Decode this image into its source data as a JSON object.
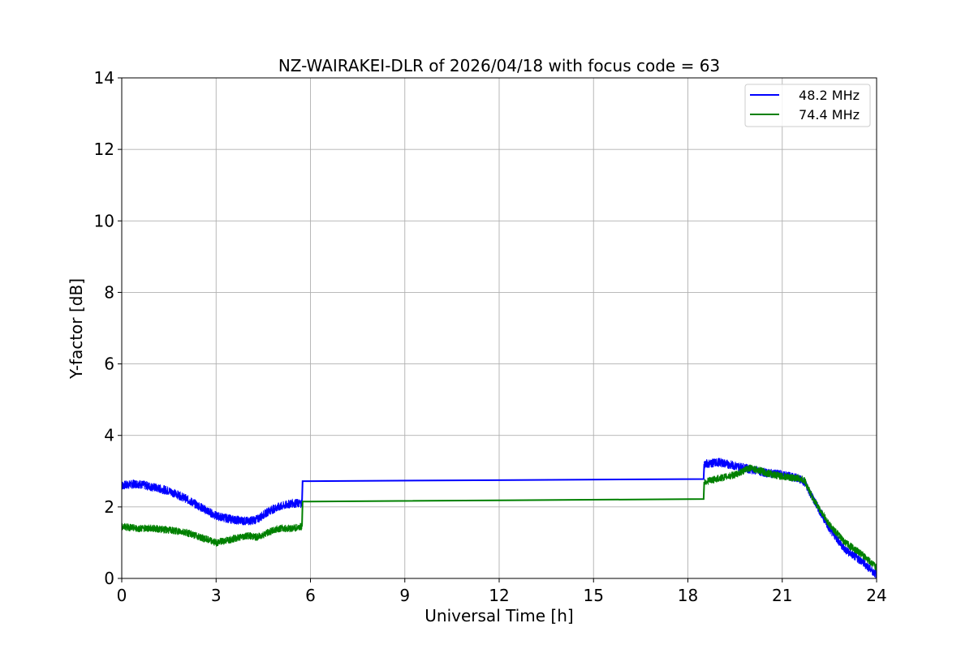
{
  "chart_data": {
    "type": "line",
    "title": "NZ-WAIRAKEI-DLR of 2026/04/18 with focus code = 63",
    "xlabel": "Universal Time [h]",
    "ylabel": "Y-factor [dB]",
    "xlim": [
      0,
      24
    ],
    "ylim": [
      0,
      14
    ],
    "xticks": [
      0,
      3,
      6,
      9,
      12,
      15,
      18,
      21,
      24
    ],
    "xtick_labels": [
      "0",
      "3",
      "6",
      "9",
      "12",
      "15",
      "18",
      "21",
      "24"
    ],
    "yticks": [
      0,
      2,
      4,
      6,
      8,
      10,
      12,
      14
    ],
    "ytick_labels": [
      "0",
      "2",
      "4",
      "6",
      "8",
      "10",
      "12",
      "14"
    ],
    "grid": true,
    "legend_position": "top-right",
    "series": [
      {
        "name": "48.2 MHz",
        "color": "#0000ff",
        "noise": 0.12,
        "x": [
          0,
          0.5,
          1.0,
          1.5,
          2.0,
          2.5,
          3.0,
          3.5,
          4.0,
          4.3,
          4.7,
          5.0,
          5.4,
          5.73,
          5.75,
          18.5,
          18.52,
          19.0,
          19.5,
          20.0,
          20.5,
          21.0,
          21.5,
          21.7,
          22.0,
          22.5,
          23.0,
          23.5,
          24.0
        ],
        "y": [
          2.6,
          2.65,
          2.55,
          2.45,
          2.25,
          2.0,
          1.75,
          1.65,
          1.6,
          1.65,
          1.9,
          2.0,
          2.1,
          2.1,
          2.72,
          2.78,
          3.2,
          3.25,
          3.15,
          3.05,
          2.95,
          2.9,
          2.8,
          2.7,
          2.2,
          1.4,
          0.8,
          0.5,
          0.1
        ]
      },
      {
        "name": "74.4 MHz",
        "color": "#008000",
        "noise": 0.1,
        "x": [
          0,
          0.5,
          1.0,
          1.5,
          2.0,
          2.5,
          3.0,
          3.5,
          4.0,
          4.3,
          4.7,
          5.0,
          5.4,
          5.73,
          5.75,
          18.5,
          18.52,
          19.0,
          19.5,
          20.0,
          20.5,
          21.0,
          21.5,
          21.7,
          22.0,
          22.5,
          23.0,
          23.5,
          24.0
        ],
        "y": [
          1.45,
          1.4,
          1.4,
          1.35,
          1.3,
          1.15,
          1.0,
          1.1,
          1.2,
          1.15,
          1.3,
          1.4,
          1.4,
          1.45,
          2.15,
          2.22,
          2.7,
          2.8,
          2.9,
          3.1,
          2.95,
          2.85,
          2.8,
          2.75,
          2.2,
          1.5,
          1.0,
          0.7,
          0.3
        ]
      }
    ]
  }
}
